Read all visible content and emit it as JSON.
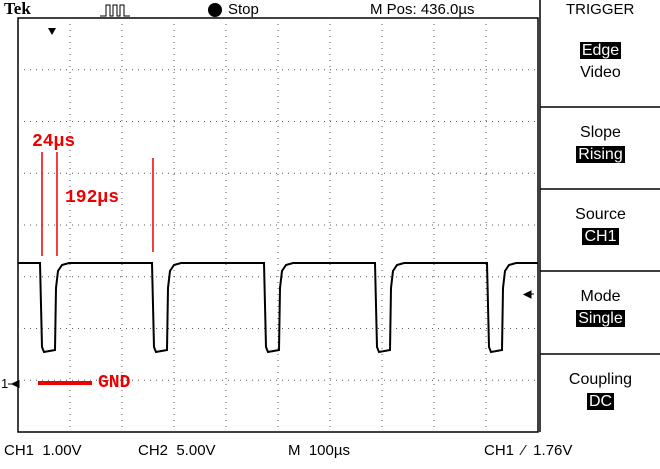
{
  "header": {
    "brand": "Tek",
    "status": "Stop",
    "position": "M Pos: 436.0µs",
    "menu_title": "TRIGGER"
  },
  "menu": [
    [
      {
        "text": "Edge",
        "selected": true
      },
      {
        "text": "Video",
        "selected": false
      }
    ],
    [
      {
        "text": "Slope",
        "selected": false
      },
      {
        "text": "Rising",
        "selected": true
      }
    ],
    [
      {
        "text": "Source",
        "selected": false
      },
      {
        "text": "CH1",
        "selected": true
      }
    ],
    [
      {
        "text": "Mode",
        "selected": false
      },
      {
        "text": "Single",
        "selected": true
      }
    ],
    [
      {
        "text": "Coupling",
        "selected": false
      },
      {
        "text": "DC",
        "selected": true
      }
    ]
  ],
  "annotations": {
    "pulse_width": "24µs",
    "gap": "192µs",
    "ground": "GND"
  },
  "channel_marker": "1",
  "footer": [
    "CH1  1.00V",
    "CH2  5.00V",
    "M  100µs",
    "CH1  ⁄  1.76V"
  ]
}
